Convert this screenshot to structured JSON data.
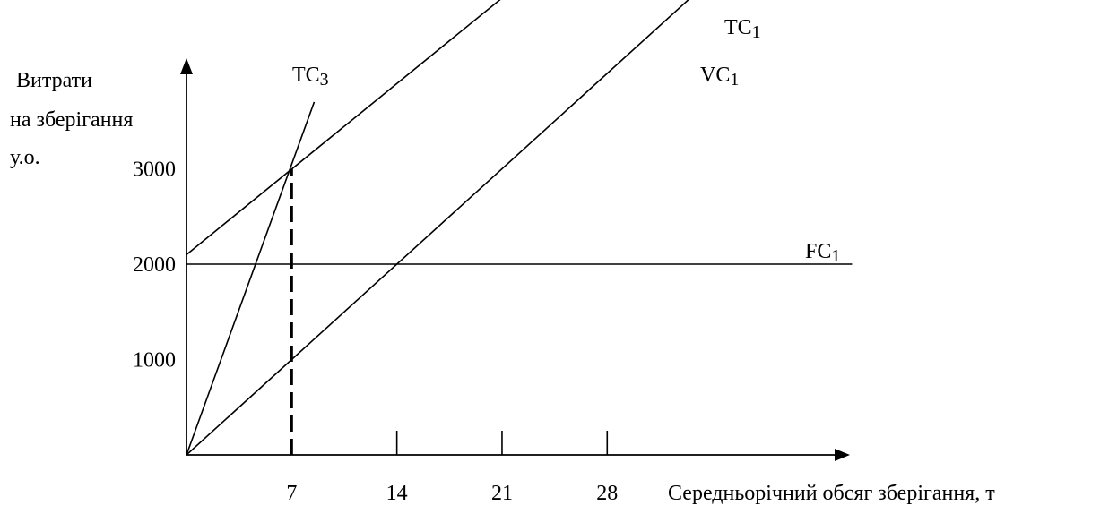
{
  "chart_data": {
    "type": "line",
    "ylabel_lines": [
      "Витрати",
      "на зберігання",
      "у.о."
    ],
    "xlabel": "Середньорічний обсяг зберігання, т",
    "xticks": [
      7,
      14,
      21,
      28
    ],
    "yticks": [
      1000,
      2000,
      3000
    ],
    "guide_x": 7,
    "series": [
      {
        "name": "TC",
        "sub": "1",
        "x": [
          0,
          24.2
        ],
        "y": [
          2100,
          5200
        ]
      },
      {
        "name": "VC",
        "sub": "1",
        "x": [
          0,
          34.3
        ],
        "y": [
          0,
          4900
        ]
      },
      {
        "name": "FC",
        "sub": "1",
        "x": [
          0,
          44.3
        ],
        "y": [
          2000,
          2000
        ]
      },
      {
        "name": "TC",
        "sub": "3",
        "x": [
          0,
          8.5
        ],
        "y": [
          0,
          3700
        ]
      }
    ]
  }
}
